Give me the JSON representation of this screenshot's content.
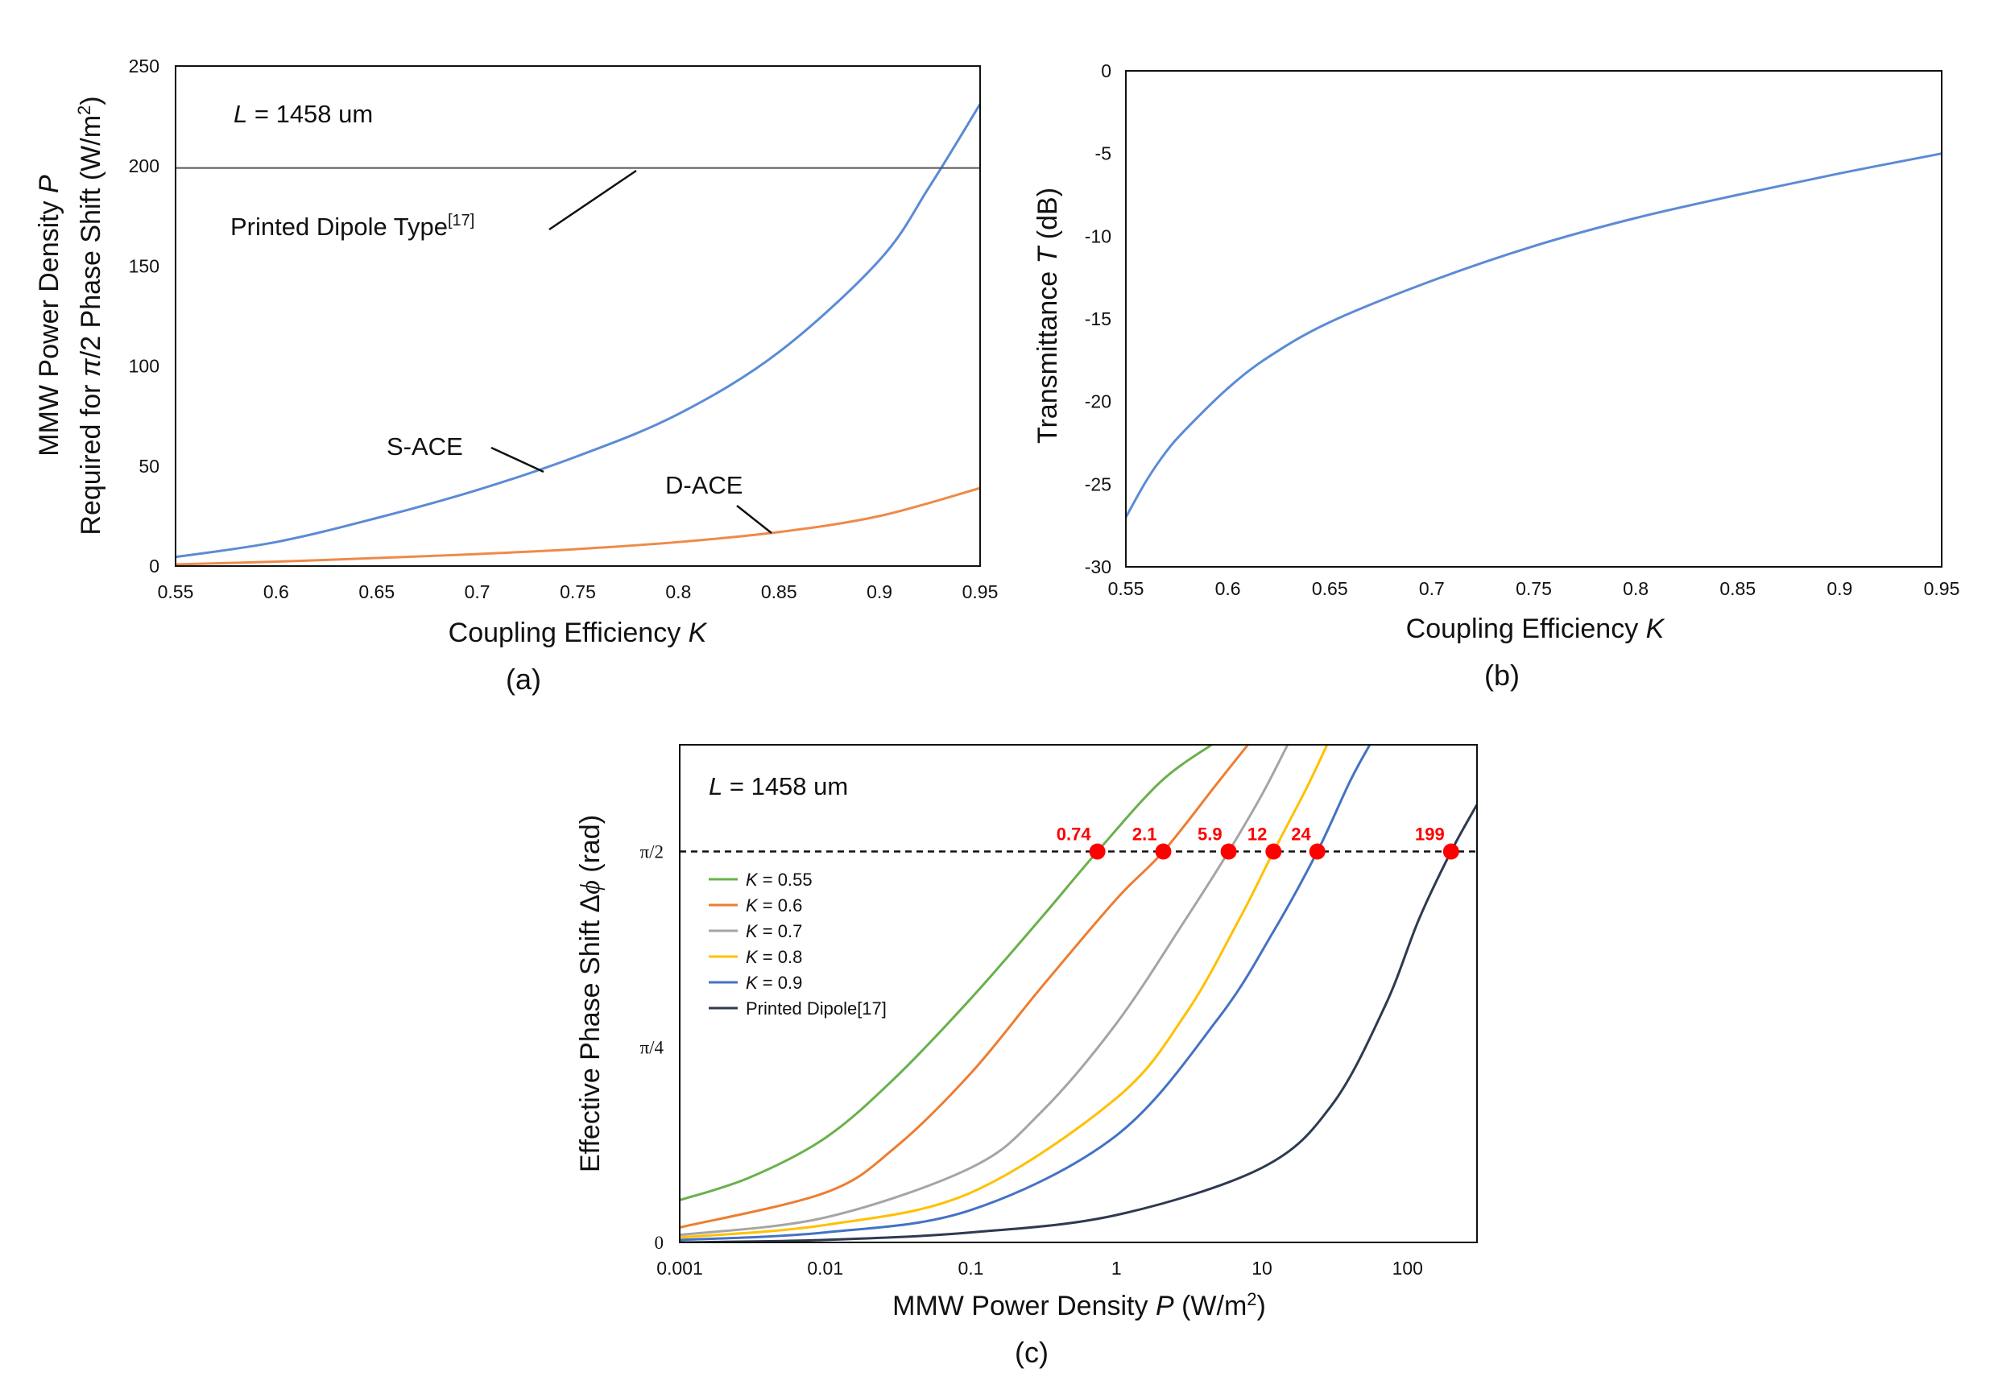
{
  "chart_data": [
    {
      "id": "a",
      "type": "line",
      "caption": "(a)",
      "xlabel_text": "Coupling Efficiency ",
      "xlabel_var": "K",
      "ylabel_line1_text": "MMW Power Density ",
      "ylabel_line1_var": "P",
      "ylabel_line2_pre": "Required for ",
      "ylabel_line2_var": "π",
      "ylabel_line2_post": "/2 Phase Shift (W/m",
      "ylabel_line2_sup": "2",
      "ylabel_line2_end": ")",
      "xlim": [
        0.55,
        0.95
      ],
      "ylim": [
        0,
        250
      ],
      "xticks": [
        "0.55",
        "0.6",
        "0.65",
        "0.7",
        "0.75",
        "0.8",
        "0.85",
        "0.9",
        "0.95"
      ],
      "yticks": [
        "0",
        "50",
        "100",
        "150",
        "200",
        "250"
      ],
      "annotation_var": "L",
      "annotation_text": " = 1458 um",
      "series": [
        {
          "name": "S-ACE",
          "color": "#5b8bd6",
          "x": [
            0.55,
            0.6,
            0.65,
            0.7,
            0.75,
            0.8,
            0.85,
            0.9,
            0.925,
            0.95
          ],
          "y": [
            4.5,
            12,
            24,
            38,
            55,
            76,
            107,
            153,
            190,
            231
          ]
        },
        {
          "name": "D-ACE",
          "color": "#ee8a4a",
          "x": [
            0.55,
            0.6,
            0.65,
            0.7,
            0.75,
            0.8,
            0.85,
            0.9,
            0.95
          ],
          "y": [
            0.8,
            2.2,
            4,
            6,
            8.5,
            12,
            17,
            25,
            39
          ]
        },
        {
          "name": "Printed Dipole Type[17]",
          "color": "#555555",
          "x": [
            0.55,
            0.95
          ],
          "y": [
            199,
            199
          ]
        }
      ],
      "labels": {
        "s_ace": "S-ACE",
        "d_ace": "D-ACE",
        "dipole_text": "Printed Dipole Type",
        "dipole_ref": "[17]"
      }
    },
    {
      "id": "b",
      "type": "line",
      "caption": "(b)",
      "xlabel_text": "Coupling Efficiency ",
      "xlabel_var": "K",
      "ylabel_text": "Transmittance ",
      "ylabel_var": "T",
      "ylabel_unit": " (dB)",
      "xlim": [
        0.55,
        0.95
      ],
      "ylim": [
        -30,
        0
      ],
      "xticks": [
        "0.55",
        "0.6",
        "0.65",
        "0.7",
        "0.75",
        "0.8",
        "0.85",
        "0.9",
        "0.95"
      ],
      "yticks": [
        "-30",
        "-25",
        "-20",
        "-15",
        "-10",
        "-5",
        "0"
      ],
      "series": [
        {
          "name": "Transmittance",
          "color": "#5b8bd6",
          "x": [
            0.55,
            0.56,
            0.57,
            0.58,
            0.6,
            0.62,
            0.65,
            0.7,
            0.75,
            0.8,
            0.85,
            0.9,
            0.95
          ],
          "y": [
            -27,
            -24.8,
            -23,
            -21.6,
            -19.2,
            -17.3,
            -15.2,
            -12.7,
            -10.6,
            -8.9,
            -7.5,
            -6.2,
            -5.0
          ]
        }
      ]
    },
    {
      "id": "c",
      "type": "line",
      "caption": "(c)",
      "xlabel_text": "MMW Power Density ",
      "xlabel_var": "P",
      "xlabel_unit_pre": " (W/m",
      "xlabel_unit_sup": "2",
      "xlabel_unit_end": ")",
      "ylabel_text": "Effective Phase Shift Δ",
      "ylabel_var": "ϕ",
      "ylabel_unit": " (rad)",
      "xscale": "log",
      "xlim": [
        0.001,
        300
      ],
      "ylim": [
        0,
        2.0
      ],
      "xticks": [
        "0.001",
        "0.01",
        "0.1",
        "1",
        "10",
        "100"
      ],
      "yticks": [
        {
          "label": "0",
          "value": 0
        },
        {
          "label": "π/4",
          "value": 0.785
        },
        {
          "label": "π/2",
          "value": 1.571
        }
      ],
      "annotation_var": "L",
      "annotation_text": " = 1458 um",
      "legend": "upper-left",
      "series": [
        {
          "name": "= 0.55",
          "k_label": "K",
          "color": "#6ab04c",
          "x": [
            0.001,
            0.003,
            0.01,
            0.03,
            0.1,
            0.3,
            0.74,
            2,
            4.5
          ],
          "y": [
            0.17,
            0.26,
            0.42,
            0.66,
            0.98,
            1.3,
            1.571,
            1.85,
            2.0
          ]
        },
        {
          "name": "= 0.6",
          "k_label": "K",
          "color": "#ed7d31",
          "x": [
            0.001,
            0.01,
            0.03,
            0.1,
            0.3,
            1,
            2.1,
            5,
            8
          ],
          "y": [
            0.06,
            0.2,
            0.38,
            0.68,
            1.02,
            1.38,
            1.571,
            1.85,
            2.0
          ]
        },
        {
          "name": "= 0.7",
          "k_label": "K",
          "color": "#a5a5a5",
          "x": [
            0.001,
            0.01,
            0.1,
            0.3,
            1,
            3,
            5.9,
            10,
            15
          ],
          "y": [
            0.03,
            0.1,
            0.3,
            0.52,
            0.88,
            1.3,
            1.571,
            1.8,
            2.0
          ]
        },
        {
          "name": "= 0.8",
          "k_label": "K",
          "color": "#ffc000",
          "x": [
            0.001,
            0.01,
            0.1,
            1,
            3,
            7,
            12,
            20,
            28
          ],
          "y": [
            0.02,
            0.07,
            0.2,
            0.58,
            0.92,
            1.3,
            1.571,
            1.82,
            2.0
          ]
        },
        {
          "name": "= 0.9",
          "k_label": "K",
          "color": "#4472c4",
          "x": [
            0.001,
            0.01,
            0.1,
            1,
            5,
            12,
            24,
            40,
            55
          ],
          "y": [
            0.01,
            0.04,
            0.13,
            0.43,
            0.9,
            1.25,
            1.571,
            1.85,
            2.0
          ]
        },
        {
          "name": "Printed Dipole[17]",
          "color": "#2e3a4f",
          "x": [
            0.001,
            0.01,
            0.1,
            1,
            10,
            30,
            70,
            120,
            199,
            300
          ],
          "y": [
            0.0,
            0.01,
            0.04,
            0.11,
            0.3,
            0.55,
            0.95,
            1.3,
            1.571,
            1.76
          ]
        }
      ],
      "threshold": {
        "value": 1.571,
        "style": "dashed"
      },
      "marked_points": [
        {
          "label": "0.74",
          "x": 0.74,
          "y": 1.571
        },
        {
          "label": "2.1",
          "x": 2.1,
          "y": 1.571
        },
        {
          "label": "5.9",
          "x": 5.9,
          "y": 1.571
        },
        {
          "label": "12",
          "x": 12,
          "y": 1.571
        },
        {
          "label": "24",
          "x": 24,
          "y": 1.571
        },
        {
          "label": "199",
          "x": 199,
          "y": 1.571
        }
      ]
    }
  ]
}
